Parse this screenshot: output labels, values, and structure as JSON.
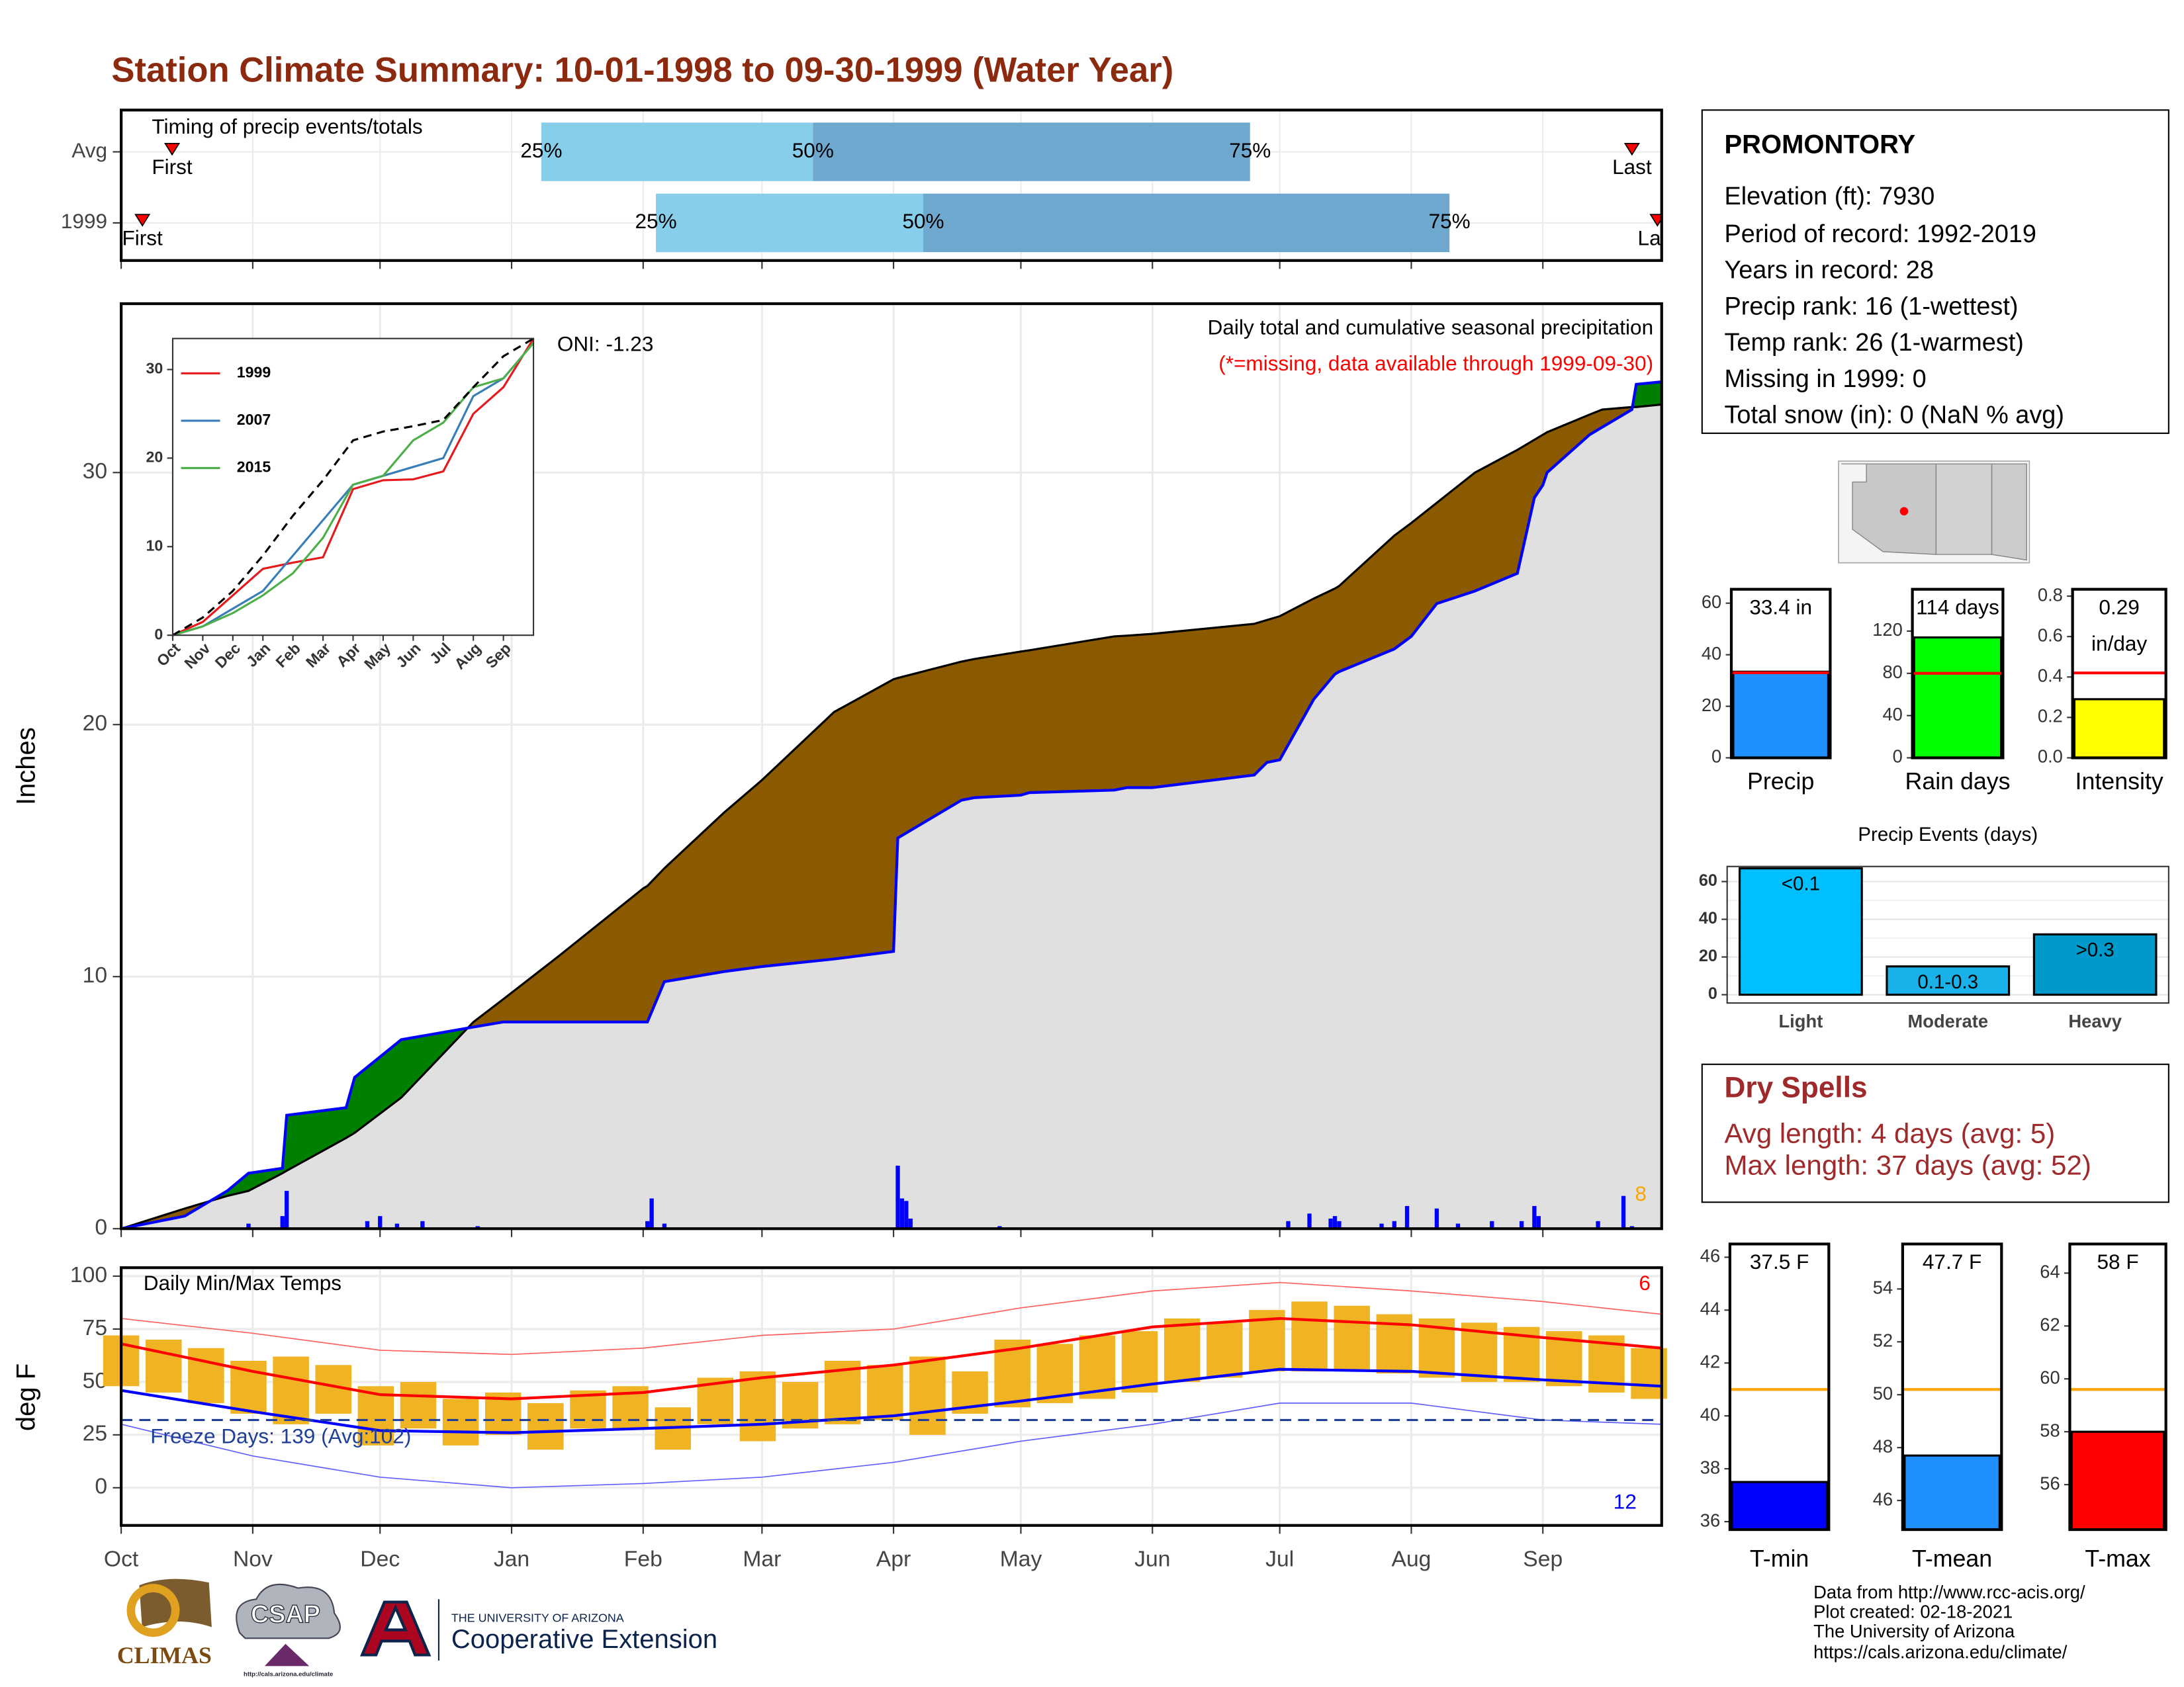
{
  "title": "Station Climate Summary: 10-01-1998 to 09-30-1999 (Water Year)",
  "chart_data": [
    {
      "type": "timing",
      "title": "Timing of precip events/totals",
      "xlim": [
        0,
        363
      ],
      "xticks": [
        0,
        31,
        61,
        92,
        123,
        151,
        182,
        212,
        243,
        273,
        304,
        335
      ],
      "marker_labels": [
        "First",
        "25%",
        "50%",
        "75%",
        "Last"
      ],
      "colors": [
        "#87ceeb",
        "#6fa8cf",
        "#ff0000"
      ],
      "series": [
        {
          "name": "Avg",
          "first": 12,
          "p25": 99,
          "p50": 163,
          "p75": 266,
          "last": 356
        },
        {
          "name": "1999",
          "first": 5,
          "p25": 126,
          "p50": 189,
          "p75": 313,
          "last": 362
        }
      ]
    },
    {
      "type": "area",
      "ylabel": "Inches",
      "xlim": [
        0,
        363
      ],
      "ylim": [
        0,
        36.7
      ],
      "yticks": [
        0,
        10,
        20,
        30
      ],
      "xticks": [
        0,
        31,
        61,
        92,
        123,
        151,
        182,
        212,
        243,
        273,
        304,
        335
      ],
      "grid": true,
      "fill_below": "#e0e0e0",
      "fill_deficit": "#8b5a00",
      "fill_surplus": "#008000",
      "annotations": [
        {
          "text": "ONI: -1.23",
          "color": "#000000"
        },
        {
          "text": "Daily total and cumulative seasonal precipitation",
          "color": "#000000"
        },
        {
          "text": "(*=missing, data available through 1999-09-30)",
          "color": "#ff0000"
        },
        {
          "text": "8",
          "color": "#ffa500"
        }
      ],
      "x": [
        0,
        15,
        25,
        30,
        38,
        39,
        53,
        55,
        66,
        83,
        90,
        103,
        123,
        124,
        128,
        142,
        151,
        168,
        182,
        183,
        198,
        201,
        212,
        214,
        234,
        237,
        243,
        267,
        270,
        273,
        281,
        286,
        287,
        300,
        304,
        310,
        319,
        329,
        333,
        335,
        336,
        346,
        349,
        356,
        357,
        363
      ],
      "series": [
        {
          "color": "#000000",
          "values": [
            0,
            0.8,
            1.3,
            1.5,
            2.2,
            2.3,
            3.6,
            3.8,
            5.2,
            8.2,
            9.1,
            10.8,
            13.5,
            13.6,
            14.3,
            16.5,
            17.8,
            20.5,
            21.8,
            21.85,
            22.5,
            22.6,
            22.9,
            22.95,
            23.5,
            23.53,
            23.6,
            24.0,
            24.15,
            24.3,
            25.0,
            25.4,
            25.5,
            27.5,
            28,
            28.8,
            30,
            30.9,
            31.3,
            31.5,
            31.6,
            32.3,
            32.5,
            32.6,
            32.6,
            32.7
          ]
        },
        {
          "color": "#0000ff",
          "values": [
            0,
            0.5,
            1.5,
            2.2,
            2.4,
            4.5,
            4.8,
            6.0,
            7.5,
            8.0,
            8.2,
            8.2,
            8.2,
            8.2,
            9.8,
            10.2,
            10.4,
            10.7,
            11.0,
            15.5,
            17.0,
            17.1,
            17.2,
            17.3,
            17.4,
            17.5,
            17.5,
            18.0,
            18.5,
            18.6,
            21.0,
            22.0,
            22.1,
            23.0,
            23.5,
            24.8,
            25.3,
            26.0,
            29.0,
            29.5,
            30.0,
            31.5,
            31.8,
            32.5,
            33.5,
            33.6
          ]
        }
      ],
      "daily": {
        "color": "#0000ff",
        "x": [
          30,
          38,
          39,
          58,
          61,
          65,
          71,
          84,
          124,
          125,
          128,
          183,
          184,
          185,
          186,
          207,
          275,
          280,
          285,
          286,
          287,
          297,
          300,
          303,
          310,
          315,
          323,
          330,
          333,
          334,
          348,
          354,
          356
        ],
        "values": [
          0.2,
          0.5,
          1.5,
          0.3,
          0.5,
          0.2,
          0.3,
          0.1,
          0.3,
          1.2,
          0.2,
          2.5,
          1.2,
          1.1,
          0.4,
          0.1,
          0.3,
          0.6,
          0.4,
          0.5,
          0.3,
          0.2,
          0.3,
          0.9,
          0.8,
          0.2,
          0.3,
          0.3,
          0.9,
          0.5,
          0.3,
          1.3,
          0.1
        ]
      }
    },
    {
      "type": "line",
      "xlim": [
        0,
        12
      ],
      "ylim": [
        0,
        33.5
      ],
      "yticks": [
        0,
        10,
        20,
        30
      ],
      "xticks": [
        {
          "value": 0,
          "label": "Oct"
        },
        {
          "value": 1,
          "label": "Nov"
        },
        {
          "value": 2,
          "label": "Dec"
        },
        {
          "value": 3,
          "label": "Jan"
        },
        {
          "value": 4,
          "label": "Feb"
        },
        {
          "value": 5,
          "label": "Mar"
        },
        {
          "value": 6,
          "label": "Apr"
        },
        {
          "value": 7,
          "label": "May"
        },
        {
          "value": 8,
          "label": "Jun"
        },
        {
          "value": 9,
          "label": "Jul"
        },
        {
          "value": 10,
          "label": "Aug"
        },
        {
          "value": 11,
          "label": "Sep"
        }
      ],
      "x": [
        0,
        1,
        2,
        3,
        4,
        5,
        6,
        7,
        8,
        9,
        10,
        11,
        12
      ],
      "series": [
        {
          "name": "1999",
          "color": "#e41a1c",
          "values": [
            0,
            1.5,
            4.5,
            7.5,
            8.2,
            8.8,
            16.5,
            17.5,
            17.6,
            18.5,
            25,
            28,
            33.5
          ]
        },
        {
          "name": "2007",
          "color": "#377eb8",
          "values": [
            0,
            1,
            3,
            5,
            9,
            13,
            17,
            18,
            19,
            20,
            27,
            29,
            33
          ]
        },
        {
          "name": "2015",
          "color": "#4daf4a",
          "values": [
            0,
            1,
            2.5,
            4.5,
            7,
            11,
            17,
            18,
            22,
            24,
            28,
            29,
            33
          ]
        },
        {
          "color": "#000000",
          "dash": true,
          "values": [
            0,
            2,
            5,
            9,
            13.5,
            17.5,
            22,
            23,
            23.6,
            24.3,
            28,
            31.5,
            33.5
          ]
        }
      ]
    },
    {
      "type": "range",
      "title": "Daily Min/Max Temps",
      "ylabel": "deg F",
      "xlim": [
        0,
        363
      ],
      "ylim": [
        -17.8,
        104
      ],
      "yticks": [
        0,
        25,
        50,
        75,
        100
      ],
      "xticks": [
        {
          "value": 0,
          "label": "Oct"
        },
        {
          "value": 31,
          "label": "Nov"
        },
        {
          "value": 61,
          "label": "Dec"
        },
        {
          "value": 92,
          "label": "Jan"
        },
        {
          "value": 123,
          "label": "Feb"
        },
        {
          "value": 151,
          "label": "Mar"
        },
        {
          "value": 182,
          "label": "Apr"
        },
        {
          "value": 212,
          "label": "May"
        },
        {
          "value": 243,
          "label": "Jun"
        },
        {
          "value": 273,
          "label": "Jul"
        },
        {
          "value": 304,
          "label": "Aug"
        },
        {
          "value": 335,
          "label": "Sep"
        }
      ],
      "grid": true,
      "annotations": [
        {
          "text": "Freeze Days: 139 (Avg:102)",
          "color": "#1f3f99"
        },
        {
          "text": "6",
          "color": "#ff0000"
        },
        {
          "text": "12",
          "color": "#0000ff"
        }
      ],
      "freeze_threshold": 32,
      "freeze_color": "#1f3f99",
      "obs": {
        "color": "#f0b323",
        "x": [
          0,
          10,
          20,
          30,
          40,
          50,
          60,
          70,
          80,
          90,
          100,
          110,
          120,
          130,
          140,
          150,
          160,
          170,
          180,
          190,
          200,
          210,
          220,
          230,
          240,
          250,
          260,
          270,
          280,
          290,
          300,
          310,
          320,
          330,
          340,
          350,
          360
        ],
        "max": [
          72,
          70,
          66,
          60,
          62,
          58,
          48,
          50,
          42,
          45,
          40,
          46,
          48,
          38,
          52,
          55,
          50,
          60,
          58,
          62,
          55,
          70,
          68,
          72,
          74,
          80,
          78,
          84,
          88,
          86,
          82,
          80,
          78,
          76,
          74,
          72,
          66
        ],
        "min": [
          48,
          45,
          40,
          35,
          30,
          35,
          20,
          28,
          20,
          25,
          18,
          28,
          28,
          18,
          30,
          22,
          28,
          30,
          32,
          25,
          35,
          38,
          40,
          42,
          45,
          50,
          52,
          55,
          55,
          56,
          54,
          52,
          50,
          50,
          48,
          45,
          42
        ]
      },
      "normal_x": [
        0,
        31,
        61,
        92,
        123,
        151,
        182,
        212,
        243,
        273,
        304,
        335,
        363
      ],
      "normals": [
        {
          "color": "#ff0000",
          "values": [
            68,
            55,
            44,
            42,
            45,
            52,
            58,
            66,
            76,
            80,
            77,
            71,
            66
          ]
        },
        {
          "color": "#0000ff",
          "values": [
            46,
            36,
            27,
            26,
            28,
            30,
            34,
            41,
            49,
            56,
            55,
            51,
            48
          ]
        }
      ],
      "records": [
        {
          "color": "#ff6060",
          "values": [
            80,
            73,
            65,
            63,
            66,
            72,
            75,
            85,
            93,
            97,
            93,
            88,
            82
          ]
        },
        {
          "color": "#6060ff",
          "values": [
            30,
            15,
            5,
            0,
            2,
            5,
            12,
            22,
            30,
            40,
            40,
            32,
            30
          ]
        }
      ]
    },
    {
      "type": "bar",
      "categories": [
        "Precip"
      ],
      "values": [
        33.4
      ],
      "value_labels": [
        "33.4 in"
      ],
      "average": 33,
      "average_color": "#ff0000",
      "color": "#1e90ff",
      "ylim": [
        0,
        65.4
      ],
      "yticks": [
        0,
        20,
        40,
        60
      ]
    },
    {
      "type": "bar",
      "categories": [
        "Rain days"
      ],
      "values": [
        114
      ],
      "value_labels": [
        "114 days"
      ],
      "average": 80,
      "average_color": "#ff0000",
      "color": "#00ff00",
      "ylim": [
        0,
        159.6
      ],
      "yticks": [
        0,
        40,
        80,
        120
      ]
    },
    {
      "type": "bar",
      "categories": [
        "Intensity"
      ],
      "values": [
        0.29
      ],
      "value_labels": [
        "0.29"
      ],
      "unit_label": "in/day",
      "average": 0.42,
      "average_color": "#ff0000",
      "color": "#ffff00",
      "ylim": [
        0,
        0.834
      ],
      "yticks": [
        {
          "value": 0,
          "label": "0.0"
        },
        {
          "value": 0.2,
          "label": "0.2"
        },
        {
          "value": 0.4,
          "label": "0.4"
        },
        {
          "value": 0.6,
          "label": "0.6"
        },
        {
          "value": 0.8,
          "label": "0.8"
        }
      ]
    },
    {
      "type": "bar",
      "title": "Precip Events (days)",
      "categories": [
        "Light",
        "Moderate",
        "Heavy"
      ],
      "values": [
        67,
        15,
        32
      ],
      "bin_labels": [
        "<0.1",
        "0.1-0.3",
        ">0.3"
      ],
      "colors": [
        "#00bfff",
        "#1ab0e8",
        "#0099cc"
      ],
      "ylim": [
        -4.4,
        68
      ],
      "yticks": [
        0,
        20,
        40,
        60
      ],
      "minor_yticks": [
        10,
        30,
        50
      ],
      "grid": true
    },
    {
      "type": "bar",
      "categories": [
        "T-min"
      ],
      "values": [
        37.5
      ],
      "value_labels": [
        "37.5 F"
      ],
      "average": 41,
      "average_color": "#ffa500",
      "color": "#0000ff",
      "ylim": [
        35.7,
        46.5
      ],
      "yticks": [
        36,
        38,
        40,
        42,
        44,
        46
      ]
    },
    {
      "type": "bar",
      "categories": [
        "T-mean"
      ],
      "values": [
        47.7
      ],
      "value_labels": [
        "47.7 F"
      ],
      "average": 50.2,
      "average_color": "#ffa500",
      "color": "#1e90ff",
      "ylim": [
        44.9,
        55.7
      ],
      "yticks": [
        46,
        48,
        50,
        52,
        54
      ]
    },
    {
      "type": "bar",
      "categories": [
        "T-max"
      ],
      "values": [
        58
      ],
      "value_labels": [
        "58 F"
      ],
      "average": 59.6,
      "average_color": "#ffa500",
      "color": "#ff0000",
      "ylim": [
        54.3,
        65.1
      ],
      "yticks": [
        56,
        58,
        60,
        62,
        64
      ]
    }
  ],
  "station": {
    "name": "PROMONTORY",
    "lines": [
      "Elevation (ft): 7930",
      "Period of record: 1992-2019",
      "Years in record: 28",
      "Precip rank: 16 (1-wettest)",
      "Temp rank: 26 (1-warmest)",
      "Missing in 1999: 0",
      "Total snow (in): 0 (NaN % avg)"
    ]
  },
  "dry_spells": {
    "title": "Dry Spells",
    "lines": [
      "Avg length: 4 days (avg: 5)",
      "Max length: 37 days (avg: 52)"
    ]
  },
  "credits": [
    "Data from http://www.rcc-acis.org/",
    "Plot created: 02-18-2021",
    "The University of Arizona",
    "https://cals.arizona.edu/climate/"
  ],
  "logos": {
    "climas": "CLIMAS",
    "csap": "CSAP",
    "csap_url": "http://cals.arizona.edu/climate",
    "ua": "THE UNIVERSITY OF ARIZONA",
    "extension": "Cooperative Extension"
  }
}
